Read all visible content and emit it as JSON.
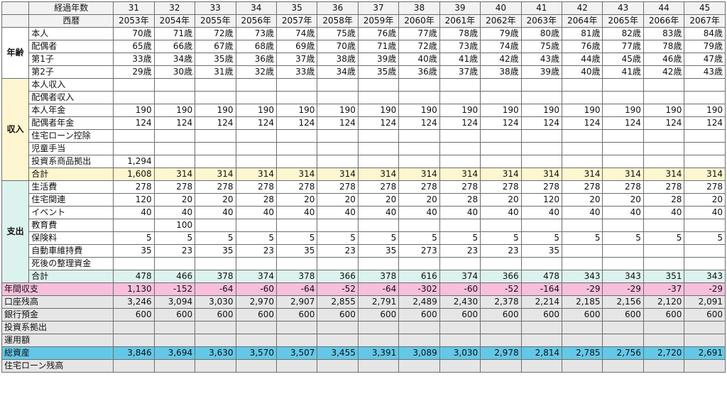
{
  "header": {
    "elapsed_label": "経過年数",
    "year_label": "西暦",
    "elapsed": [
      "31",
      "32",
      "33",
      "34",
      "35",
      "36",
      "37",
      "38",
      "39",
      "40",
      "41",
      "42",
      "43",
      "44",
      "45"
    ],
    "years": [
      "2053年",
      "2054年",
      "2055年",
      "2056年",
      "2057年",
      "2058年",
      "2059年",
      "2060年",
      "2061年",
      "2062年",
      "2063年",
      "2064年",
      "2065年",
      "2066年",
      "2067年"
    ]
  },
  "groups": {
    "age": "年齢",
    "income": "収入",
    "expense": "支出"
  },
  "age_rows": [
    {
      "label": "本人",
      "values": [
        "70歳",
        "71歳",
        "72歳",
        "73歳",
        "74歳",
        "75歳",
        "76歳",
        "77歳",
        "78歳",
        "79歳",
        "80歳",
        "81歳",
        "82歳",
        "83歳",
        "84歳"
      ]
    },
    {
      "label": "配偶者",
      "values": [
        "65歳",
        "66歳",
        "67歳",
        "68歳",
        "69歳",
        "70歳",
        "71歳",
        "72歳",
        "73歳",
        "74歳",
        "75歳",
        "76歳",
        "77歳",
        "78歳",
        "79歳"
      ]
    },
    {
      "label": "第1子",
      "values": [
        "33歳",
        "34歳",
        "35歳",
        "36歳",
        "37歳",
        "38歳",
        "39歳",
        "40歳",
        "41歳",
        "42歳",
        "43歳",
        "44歳",
        "45歳",
        "46歳",
        "47歳"
      ]
    },
    {
      "label": "第2子",
      "values": [
        "29歳",
        "30歳",
        "31歳",
        "32歳",
        "33歳",
        "34歳",
        "35歳",
        "36歳",
        "37歳",
        "38歳",
        "39歳",
        "40歳",
        "41歳",
        "42歳",
        "43歳"
      ]
    }
  ],
  "income_rows": [
    {
      "label": "本人収入",
      "values": [
        "",
        "",
        "",
        "",
        "",
        "",
        "",
        "",
        "",
        "",
        "",
        "",
        "",
        "",
        ""
      ]
    },
    {
      "label": "配偶者収入",
      "values": [
        "",
        "",
        "",
        "",
        "",
        "",
        "",
        "",
        "",
        "",
        "",
        "",
        "",
        "",
        ""
      ]
    },
    {
      "label": "本人年金",
      "values": [
        "190",
        "190",
        "190",
        "190",
        "190",
        "190",
        "190",
        "190",
        "190",
        "190",
        "190",
        "190",
        "190",
        "190",
        "190"
      ]
    },
    {
      "label": "配偶者年金",
      "values": [
        "124",
        "124",
        "124",
        "124",
        "124",
        "124",
        "124",
        "124",
        "124",
        "124",
        "124",
        "124",
        "124",
        "124",
        "124"
      ]
    },
    {
      "label": "住宅ローン控除",
      "values": [
        "",
        "",
        "",
        "",
        "",
        "",
        "",
        "",
        "",
        "",
        "",
        "",
        "",
        "",
        ""
      ]
    },
    {
      "label": "児童手当",
      "values": [
        "",
        "",
        "",
        "",
        "",
        "",
        "",
        "",
        "",
        "",
        "",
        "",
        "",
        "",
        ""
      ]
    },
    {
      "label": "投資系商品拠出",
      "values": [
        "1,294",
        "",
        "",
        "",
        "",
        "",
        "",
        "",
        "",
        "",
        "",
        "",
        "",
        "",
        ""
      ]
    }
  ],
  "income_total": {
    "label": "合計",
    "values": [
      "1,608",
      "314",
      "314",
      "314",
      "314",
      "314",
      "314",
      "314",
      "314",
      "314",
      "314",
      "314",
      "314",
      "314",
      "314"
    ]
  },
  "expense_rows": [
    {
      "label": "生活費",
      "values": [
        "278",
        "278",
        "278",
        "278",
        "278",
        "278",
        "278",
        "278",
        "278",
        "278",
        "278",
        "278",
        "278",
        "278",
        "278"
      ]
    },
    {
      "label": "住宅関連",
      "values": [
        "120",
        "20",
        "20",
        "28",
        "20",
        "20",
        "20",
        "20",
        "28",
        "20",
        "120",
        "20",
        "20",
        "28",
        "20"
      ]
    },
    {
      "label": "イベント",
      "values": [
        "40",
        "40",
        "40",
        "40",
        "40",
        "40",
        "40",
        "40",
        "40",
        "40",
        "40",
        "40",
        "40",
        "40",
        "40"
      ]
    },
    {
      "label": "教育費",
      "values": [
        "",
        "100",
        "",
        "",
        "",
        "",
        "",
        "",
        "",
        "",
        "",
        "",
        "",
        "",
        ""
      ]
    },
    {
      "label": "保険料",
      "values": [
        "5",
        "5",
        "5",
        "5",
        "5",
        "5",
        "5",
        "5",
        "5",
        "5",
        "5",
        "5",
        "5",
        "5",
        "5"
      ]
    },
    {
      "label": "自動車維持費",
      "values": [
        "35",
        "23",
        "35",
        "23",
        "35",
        "23",
        "35",
        "273",
        "23",
        "23",
        "35",
        "",
        "",
        "",
        ""
      ]
    },
    {
      "label": "死後の整理資金",
      "values": [
        "",
        "",
        "",
        "",
        "",
        "",
        "",
        "",
        "",
        "",
        "",
        "",
        "",
        "",
        ""
      ]
    }
  ],
  "expense_total": {
    "label": "合計",
    "values": [
      "478",
      "466",
      "378",
      "374",
      "378",
      "366",
      "378",
      "616",
      "374",
      "366",
      "478",
      "343",
      "343",
      "351",
      "343"
    ]
  },
  "summary": {
    "annual_balance": {
      "label": "年間収支",
      "values": [
        "1,130",
        "-152",
        "-64",
        "-60",
        "-64",
        "-52",
        "-64",
        "-302",
        "-60",
        "-52",
        "-164",
        "-29",
        "-29",
        "-37",
        "-29"
      ]
    },
    "account_balance": {
      "label": "口座残高",
      "values": [
        "3,246",
        "3,094",
        "3,030",
        "2,970",
        "2,907",
        "2,855",
        "2,791",
        "2,489",
        "2,430",
        "2,378",
        "2,214",
        "2,185",
        "2,156",
        "2,120",
        "2,091"
      ]
    },
    "bank_deposit": {
      "label": "銀行預金",
      "values": [
        "600",
        "600",
        "600",
        "600",
        "600",
        "600",
        "600",
        "600",
        "600",
        "600",
        "600",
        "600",
        "600",
        "600",
        "600"
      ]
    },
    "investment_contribution": {
      "label": "投資系拠出",
      "values": [
        "",
        "",
        "",
        "",
        "",
        "",
        "",
        "",
        "",
        "",
        "",
        "",
        "",
        "",
        ""
      ]
    },
    "managed_amount": {
      "label": "運用額",
      "values": [
        "",
        "",
        "",
        "",
        "",
        "",
        "",
        "",
        "",
        "",
        "",
        "",
        "",
        "",
        ""
      ]
    },
    "total_assets": {
      "label": "総資産",
      "values": [
        "3,846",
        "3,694",
        "3,630",
        "3,570",
        "3,507",
        "3,455",
        "3,391",
        "3,089",
        "3,030",
        "2,978",
        "2,814",
        "2,785",
        "2,756",
        "2,720",
        "2,691"
      ]
    },
    "mortgage_balance": {
      "label": "住宅ローン残高",
      "values": [
        "",
        "",
        "",
        "",
        "",
        "",
        "",
        "",
        "",
        "",
        "",
        "",
        "",
        "",
        ""
      ]
    }
  },
  "colors": {
    "income_bg": "#fdf6d0",
    "expense_bg": "#dcf2ee",
    "balance_bg": "#f7bfdc",
    "assets_bg": "#63c8e8",
    "gray_bg": "#e6e6e6"
  }
}
